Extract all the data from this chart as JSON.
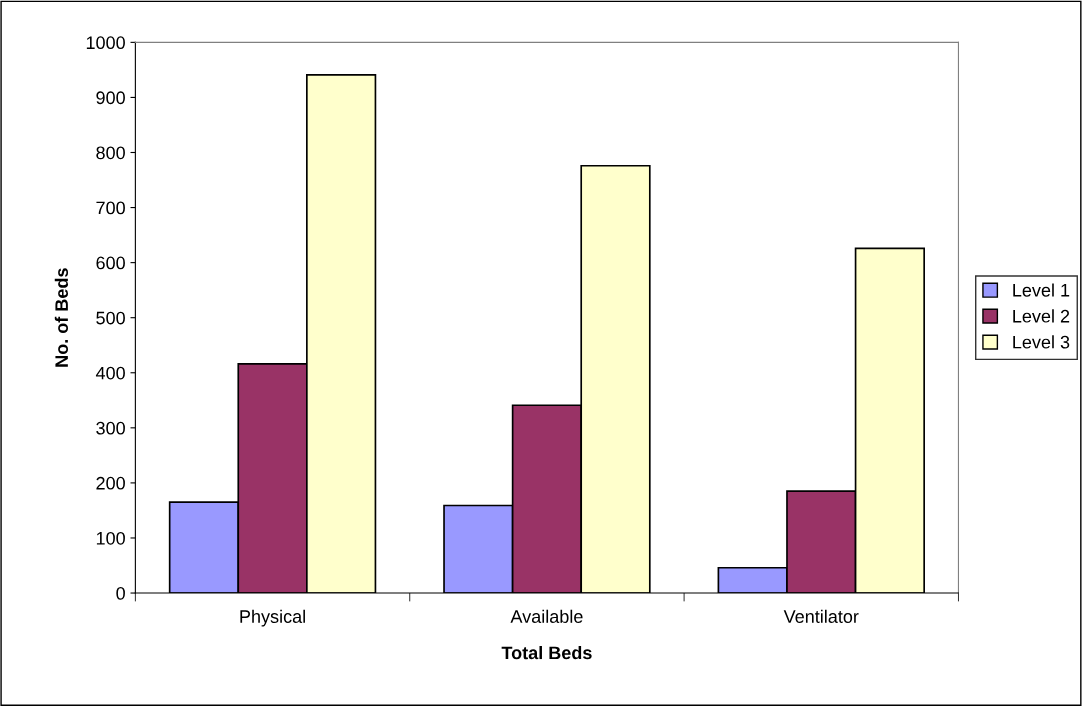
{
  "chart_data": {
    "type": "bar",
    "xlabel": "Total Beds",
    "ylabel": "No. of Beds",
    "categories": [
      "Physical",
      "Available",
      "Ventilator"
    ],
    "series": [
      {
        "name": "Level 1",
        "color": "#9999ff",
        "values": [
          165,
          159,
          46
        ]
      },
      {
        "name": "Level 2",
        "color": "#993366",
        "values": [
          416,
          341,
          185
        ]
      },
      {
        "name": "Level 3",
        "color": "#ffffcc",
        "values": [
          941,
          776,
          626
        ]
      }
    ],
    "ylim": [
      0,
      1000
    ],
    "yticks": [
      0,
      100,
      200,
      300,
      400,
      500,
      600,
      700,
      800,
      900,
      1000
    ],
    "grid": false,
    "legend": "right"
  }
}
